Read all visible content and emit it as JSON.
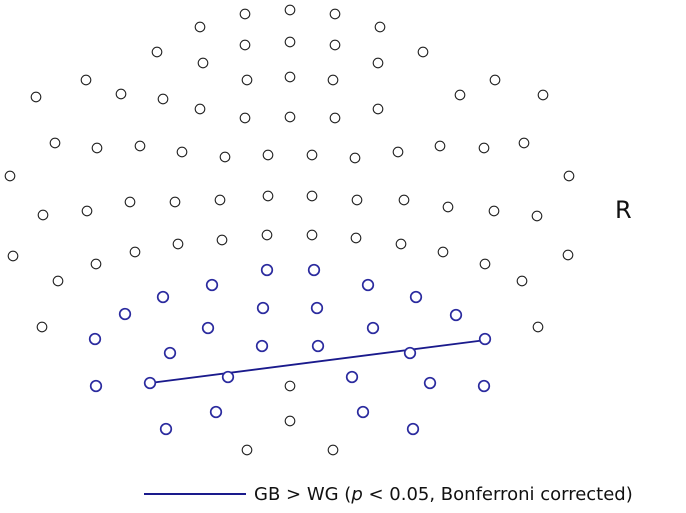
{
  "diagram": {
    "side_label": "R",
    "legend": {
      "text_before": "GB > WG (",
      "p_symbol": "p",
      "text_after": " < 0.05, Bonferroni corrected)"
    },
    "colors": {
      "electrode_default": "#222222",
      "electrode_significant": "#2a2a9e",
      "connection_line": "#1a1a8c"
    },
    "electrodes": {
      "total": 127,
      "significant_count": 33
    },
    "significant_connections": [
      {
        "from": "left-posterior-temporal",
        "to": "right-posterior-temporal"
      }
    ]
  }
}
